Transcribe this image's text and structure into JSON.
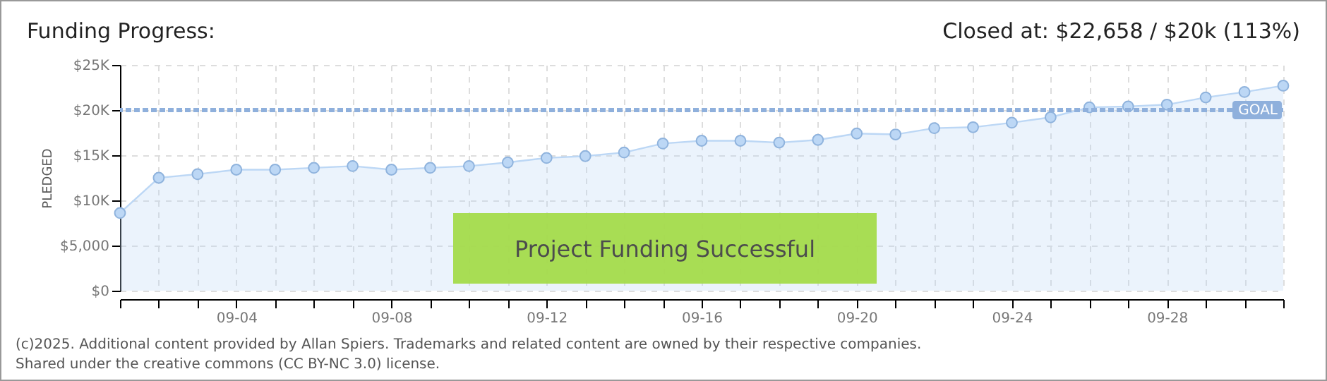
{
  "chart_data": {
    "type": "area",
    "title": "Funding Progress:",
    "subtitle": "Closed at:  $22,658 /  $20k (113%)",
    "ylabel": "PLEDGED",
    "x": [
      "--09-01",
      "--09-02",
      "--09-03",
      "--09-04",
      "--09-05",
      "--09-06",
      "--09-07",
      "--09-08",
      "--09-09",
      "--09-10",
      "--09-11",
      "--09-12",
      "--09-13",
      "--09-14",
      "--09-15",
      "--09-16",
      "--09-17",
      "--09-18",
      "--09-19",
      "--09-20",
      "--09-21",
      "--09-22",
      "--09-23",
      "--09-24",
      "--09-25",
      "--09-26",
      "--09-27",
      "--09-28",
      "--09-29",
      "--09-30",
      "--10-01"
    ],
    "series": [
      {
        "color": "#bcd7f5",
        "values": [
          8600,
          12500,
          12900,
          13400,
          13400,
          13600,
          13800,
          13400,
          13600,
          13800,
          14200,
          14700,
          14900,
          15300,
          16300,
          16600,
          16600,
          16400,
          16700,
          17400,
          17300,
          18000,
          18100,
          18600,
          19200,
          20300,
          20400,
          20600,
          21400,
          22000,
          22700
        ]
      }
    ],
    "xlim": [
      "--09-01",
      "--10-01"
    ],
    "xticks": [
      {
        "value": "--09-01",
        "label": null
      },
      {
        "value": "--09-02",
        "label": null
      },
      {
        "value": "--09-03",
        "label": null
      },
      {
        "value": "--09-04",
        "label": "09-04"
      },
      {
        "value": "--09-05",
        "label": null
      },
      {
        "value": "--09-06",
        "label": null
      },
      {
        "value": "--09-07",
        "label": null
      },
      {
        "value": "--09-08",
        "label": "09-08"
      },
      {
        "value": "--09-09",
        "label": null
      },
      {
        "value": "--09-10",
        "label": null
      },
      {
        "value": "--09-11",
        "label": null
      },
      {
        "value": "--09-12",
        "label": "09-12"
      },
      {
        "value": "--09-13",
        "label": null
      },
      {
        "value": "--09-14",
        "label": null
      },
      {
        "value": "--09-15",
        "label": null
      },
      {
        "value": "--09-16",
        "label": "09-16"
      },
      {
        "value": "--09-17",
        "label": null
      },
      {
        "value": "--09-18",
        "label": null
      },
      {
        "value": "--09-19",
        "label": null
      },
      {
        "value": "--09-20",
        "label": "09-20"
      },
      {
        "value": "--09-21",
        "label": null
      },
      {
        "value": "--09-22",
        "label": null
      },
      {
        "value": "--09-23",
        "label": null
      },
      {
        "value": "--09-24",
        "label": "09-24"
      },
      {
        "value": "--09-25",
        "label": null
      },
      {
        "value": "--09-26",
        "label": null
      },
      {
        "value": "--09-27",
        "label": null
      },
      {
        "value": "--09-28",
        "label": "09-28"
      },
      {
        "value": "--09-29",
        "label": null
      },
      {
        "value": "--09-30",
        "label": null
      },
      {
        "value": "--10-01",
        "label": null
      }
    ],
    "ylim": [
      0,
      25000
    ],
    "yticks": [
      {
        "value": 0,
        "label": "$0"
      },
      {
        "value": 5000,
        "label": "$5,000"
      },
      {
        "value": 10000,
        "label": "$10K"
      },
      {
        "value": 15000,
        "label": "$15K"
      },
      {
        "value": 20000,
        "label": "$20K"
      },
      {
        "value": 25000,
        "label": "$25K"
      }
    ],
    "ref_lines": [
      {
        "axis": "y",
        "value": 20000,
        "label": "GOAL",
        "color": "#8fb0dc",
        "line_style": "dashed"
      }
    ],
    "grid": true,
    "marker": "circle",
    "line_style": "solid",
    "annotations": [
      "Project Funding Successful",
      "(c)2025. Additional content provided by Allan Spiers. Trademarks and related content are owned by their respective companies.",
      "Shared under the creative commons (CC BY-NC 3.0) license."
    ]
  }
}
